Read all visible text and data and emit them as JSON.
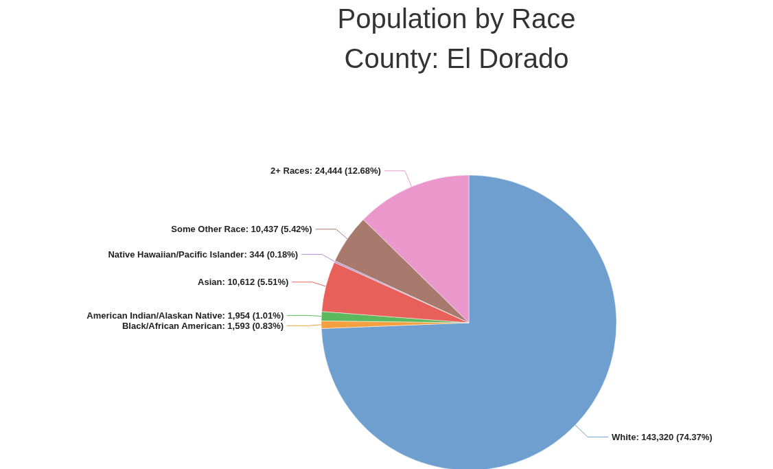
{
  "chart_data": {
    "type": "pie",
    "title": "Population by Race",
    "subtitle": "County: El Dorado",
    "categories": [
      "White",
      "Black/African American",
      "American Indian/Alaskan Native",
      "Asian",
      "Native Hawaiian/Pacific Islander",
      "Some Other Race",
      "2+ Races"
    ],
    "values": [
      143320,
      1593,
      1954,
      10612,
      344,
      10437,
      24444
    ],
    "value_labels": [
      "143,320 (74.37%)",
      "1,593 (0.83%)",
      "1,954 (1.01%)",
      "10,612 (5.51%)",
      "344 (0.18%)",
      "10,437 (5.42%)",
      "24,444 (12.68%)"
    ],
    "colors": [
      "#6f9fcf",
      "#f4a040",
      "#5cb85c",
      "#e8605a",
      "#b490d0",
      "#a87a6e",
      "#ea98cb"
    ],
    "legend": false
  }
}
